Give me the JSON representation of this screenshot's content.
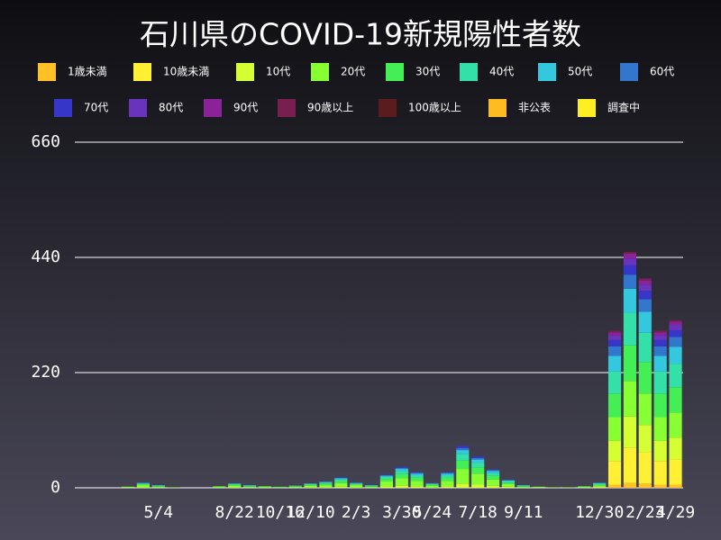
{
  "chart_data": {
    "type": "stacked_bar",
    "title": "石川県のCOVID-19新規陽性者数",
    "categories": [
      null,
      null,
      null,
      null,
      null,
      "5/4",
      null,
      null,
      null,
      null,
      "8/22",
      null,
      null,
      "10/16",
      null,
      "12/10",
      null,
      null,
      "2/3",
      null,
      null,
      "3/30",
      null,
      "5/24",
      null,
      null,
      "7/18",
      null,
      null,
      "9/11",
      null,
      null,
      null,
      null,
      "12/30",
      null,
      null,
      "2/23",
      null,
      "4/29"
    ],
    "ylim": [
      0,
      660
    ],
    "yticks": [
      0,
      220,
      440,
      660
    ],
    "grid": true,
    "series": [
      {
        "name": "1歳未満",
        "color": "#ffc125",
        "values": [
          0,
          0,
          0,
          0,
          0,
          0,
          0,
          0,
          0,
          0,
          0,
          0,
          0,
          0,
          0,
          0,
          0,
          0,
          0,
          0,
          0,
          0,
          0,
          0,
          0,
          0,
          0,
          0,
          0,
          0,
          0,
          0,
          0,
          0,
          0,
          6,
          9,
          8,
          6,
          6
        ]
      },
      {
        "name": "10歳未満",
        "color": "#fff033",
        "values": [
          0,
          0,
          0,
          0,
          0,
          0,
          0,
          0,
          0,
          0,
          0,
          0,
          0,
          0,
          0,
          0,
          0,
          0,
          0,
          0,
          0,
          0,
          0,
          0,
          0,
          0,
          0,
          0,
          0,
          0,
          0,
          0,
          0,
          0,
          1,
          45,
          68,
          60,
          45,
          48
        ]
      },
      {
        "name": "10代",
        "color": "#d6ff33",
        "values": [
          0,
          0,
          0,
          0,
          1,
          0,
          0,
          0,
          0,
          0,
          1,
          0,
          0,
          0,
          0,
          1,
          1,
          2,
          1,
          0,
          3,
          4,
          3,
          0,
          3,
          8,
          6,
          4,
          2,
          0,
          0,
          0,
          0,
          0,
          1,
          39,
          59,
          52,
          39,
          42
        ]
      },
      {
        "name": "20代",
        "color": "#88ff33",
        "values": [
          0,
          0,
          0,
          2,
          4,
          2,
          1,
          0,
          0,
          2,
          3,
          2,
          2,
          1,
          2,
          3,
          4,
          7,
          4,
          2,
          9,
          14,
          10,
          4,
          10,
          28,
          21,
          12,
          5,
          2,
          2,
          1,
          1,
          2,
          2,
          45,
          68,
          60,
          45,
          48
        ]
      },
      {
        "name": "30代",
        "color": "#44ee55",
        "values": [
          0,
          0,
          0,
          0,
          2,
          1,
          0,
          0,
          0,
          1,
          2,
          1,
          1,
          1,
          1,
          2,
          3,
          4,
          2,
          1,
          5,
          8,
          6,
          2,
          6,
          16,
          12,
          7,
          3,
          1,
          0,
          0,
          0,
          1,
          2,
          45,
          68,
          60,
          45,
          48
        ]
      },
      {
        "name": "40代",
        "color": "#33e0a8",
        "values": [
          0,
          0,
          0,
          0,
          1,
          1,
          0,
          0,
          0,
          0,
          1,
          1,
          0,
          0,
          1,
          1,
          2,
          3,
          1,
          1,
          4,
          6,
          5,
          1,
          5,
          12,
          9,
          5,
          2,
          1,
          0,
          0,
          0,
          0,
          2,
          42,
          63,
          56,
          42,
          45
        ]
      },
      {
        "name": "50代",
        "color": "#33c8dd",
        "values": [
          0,
          0,
          0,
          0,
          1,
          1,
          0,
          0,
          0,
          0,
          1,
          1,
          0,
          0,
          0,
          1,
          1,
          2,
          1,
          1,
          2,
          4,
          3,
          1,
          3,
          8,
          6,
          4,
          2,
          1,
          0,
          0,
          0,
          0,
          1,
          30,
          45,
          40,
          30,
          32
        ]
      },
      {
        "name": "60代",
        "color": "#3377cc",
        "values": [
          0,
          0,
          0,
          0,
          1,
          0,
          0,
          0,
          0,
          0,
          0,
          0,
          0,
          0,
          0,
          0,
          1,
          1,
          1,
          0,
          1,
          2,
          2,
          1,
          2,
          4,
          3,
          2,
          1,
          0,
          0,
          0,
          0,
          0,
          1,
          18,
          27,
          24,
          18,
          19
        ]
      },
      {
        "name": "70代",
        "color": "#3636c8",
        "values": [
          0,
          0,
          0,
          0,
          0,
          0,
          0,
          0,
          0,
          0,
          0,
          0,
          0,
          0,
          0,
          0,
          0,
          1,
          0,
          0,
          1,
          2,
          1,
          0,
          1,
          4,
          3,
          1,
          0,
          0,
          0,
          0,
          0,
          0,
          0,
          12,
          18,
          16,
          12,
          13
        ]
      },
      {
        "name": "80代",
        "color": "#6a33bb",
        "values": [
          0,
          0,
          0,
          0,
          0,
          0,
          0,
          0,
          0,
          0,
          0,
          0,
          0,
          0,
          0,
          0,
          0,
          0,
          0,
          0,
          0,
          0,
          0,
          0,
          0,
          0,
          0,
          0,
          0,
          0,
          0,
          0,
          0,
          0,
          0,
          9,
          13,
          12,
          9,
          10
        ]
      },
      {
        "name": "90代",
        "color": "#8a2299",
        "values": [
          0,
          0,
          0,
          0,
          0,
          0,
          0,
          0,
          0,
          0,
          0,
          0,
          0,
          0,
          0,
          0,
          0,
          0,
          0,
          0,
          0,
          0,
          0,
          0,
          0,
          0,
          0,
          0,
          0,
          0,
          0,
          0,
          0,
          0,
          0,
          6,
          9,
          8,
          6,
          6
        ]
      },
      {
        "name": "90歳以上",
        "color": "#772050",
        "values": [
          0,
          0,
          0,
          0,
          0,
          0,
          0,
          0,
          0,
          0,
          0,
          0,
          0,
          0,
          0,
          0,
          0,
          0,
          0,
          0,
          0,
          0,
          0,
          0,
          0,
          0,
          0,
          0,
          0,
          0,
          0,
          0,
          0,
          0,
          0,
          3,
          3,
          4,
          3,
          3
        ]
      },
      {
        "name": "100歳以上",
        "color": "#5a1c1c",
        "values": [
          0,
          0,
          0,
          0,
          0,
          0,
          0,
          0,
          0,
          0,
          0,
          0,
          0,
          0,
          0,
          0,
          0,
          0,
          0,
          0,
          0,
          0,
          0,
          0,
          0,
          0,
          0,
          0,
          0,
          0,
          0,
          0,
          0,
          0,
          0,
          0,
          0,
          0,
          0,
          0
        ]
      },
      {
        "name": "非公表",
        "color": "#ffbb22",
        "values": [
          0,
          0,
          0,
          0,
          0,
          0,
          0,
          0,
          0,
          0,
          0,
          0,
          0,
          0,
          0,
          0,
          0,
          0,
          0,
          0,
          0,
          0,
          0,
          0,
          0,
          0,
          0,
          0,
          0,
          0,
          0,
          0,
          0,
          0,
          0,
          0,
          0,
          0,
          0,
          0
        ]
      },
      {
        "name": "調査中",
        "color": "#ffee22",
        "values": [
          0,
          0,
          0,
          0,
          0,
          0,
          0,
          0,
          0,
          0,
          0,
          0,
          0,
          0,
          0,
          0,
          0,
          0,
          0,
          0,
          0,
          0,
          0,
          0,
          0,
          0,
          0,
          0,
          0,
          0,
          0,
          0,
          0,
          0,
          0,
          0,
          0,
          0,
          0,
          0
        ]
      }
    ]
  }
}
